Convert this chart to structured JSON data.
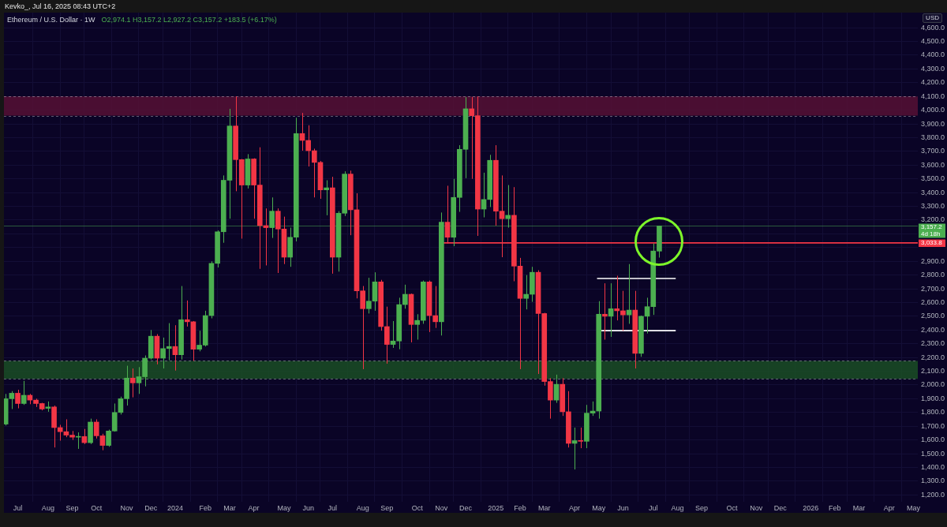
{
  "chart_data": {
    "type": "candlestick",
    "title": "Ethereum / U.S. Dollar · 1W",
    "subtitle": "O2,974.1 H3,157.2 L2,927.2 C3,157.2 +183.5 (+6.17%)",
    "ylabel": "USD",
    "annotations": [
      "Kevko_, Jul 16, 2025 08:43 UTC+2",
      {
        "text": "3,033.8",
        "x": "2026-05-09",
        "y": 3033.8
      }
    ],
    "series": [
      {
        "type": "line",
        "x": [
          "2024-11-06",
          "2026-05-09"
        ],
        "values": [
          3033.8,
          3033.8
        ],
        "color": "#f23645"
      },
      {
        "type": "line",
        "x": [
          "2025-05-03",
          "2025-08-02"
        ],
        "values": [
          2775,
          2775
        ],
        "color": "#ffffff"
      },
      {
        "type": "line",
        "x": [
          "2025-05-06",
          "2025-08-02"
        ],
        "values": [
          2395,
          2395
        ],
        "color": "#ffffff"
      },
      {
        "x": [
          "2023-06-19",
          "2023-06-26",
          "2023-07-03",
          "2023-07-10",
          "2023-07-17",
          "2023-07-24",
          "2023-07-31",
          "2023-08-07",
          "2023-08-14",
          "2023-08-21",
          "2023-08-28",
          "2023-09-04",
          "2023-09-11",
          "2023-09-18",
          "2023-09-25",
          "2023-10-02",
          "2023-10-09",
          "2023-10-16",
          "2023-10-23",
          "2023-10-30",
          "2023-11-06",
          "2023-11-13",
          "2023-11-20",
          "2023-11-27",
          "2023-12-04",
          "2023-12-11",
          "2023-12-18",
          "2023-12-25",
          "2024-01-01",
          "2024-01-08",
          "2024-01-15",
          "2024-01-22",
          "2024-01-29",
          "2024-02-05",
          "2024-02-12",
          "2024-02-19",
          "2024-02-26",
          "2024-03-04",
          "2024-03-11",
          "2024-03-18",
          "2024-03-25",
          "2024-04-01",
          "2024-04-08",
          "2024-04-15",
          "2024-04-22",
          "2024-04-29",
          "2024-05-06",
          "2024-05-13",
          "2024-05-20",
          "2024-05-27",
          "2024-06-03",
          "2024-06-10",
          "2024-06-17",
          "2024-06-24",
          "2024-07-01",
          "2024-07-08",
          "2024-07-15",
          "2024-07-22",
          "2024-07-29",
          "2024-08-05",
          "2024-08-12",
          "2024-08-19",
          "2024-08-26",
          "2024-09-02",
          "2024-09-09",
          "2024-09-16",
          "2024-09-23",
          "2024-09-30",
          "2024-10-07",
          "2024-10-14",
          "2024-10-21",
          "2024-10-28",
          "2024-11-04",
          "2024-11-11",
          "2024-11-18",
          "2024-11-25",
          "2024-12-02",
          "2024-12-09",
          "2024-12-16",
          "2024-12-23",
          "2024-12-30",
          "2025-01-06",
          "2025-01-13",
          "2025-01-20",
          "2025-01-27",
          "2025-02-03",
          "2025-02-10",
          "2025-02-17",
          "2025-02-24",
          "2025-03-03",
          "2025-03-10",
          "2025-03-17",
          "2025-03-24",
          "2025-03-31",
          "2025-04-07",
          "2025-04-14",
          "2025-04-21",
          "2025-04-28",
          "2025-05-05",
          "2025-05-12",
          "2025-05-19",
          "2025-05-26",
          "2025-06-02",
          "2025-06-09",
          "2025-06-16",
          "2025-06-23",
          "2025-06-30",
          "2025-07-07",
          "2025-07-14"
        ],
        "ohlc": [
          [
            1715,
            1935,
            1705,
            1900
          ],
          [
            1900,
            1955,
            1825,
            1940
          ],
          [
            1940,
            1965,
            1830,
            1865
          ],
          [
            1865,
            2030,
            1855,
            1925
          ],
          [
            1925,
            1935,
            1860,
            1890
          ],
          [
            1890,
            1900,
            1840,
            1865
          ],
          [
            1865,
            1870,
            1815,
            1825
          ],
          [
            1830,
            1880,
            1805,
            1840
          ],
          [
            1840,
            1850,
            1545,
            1690
          ],
          [
            1690,
            1710,
            1595,
            1660
          ],
          [
            1660,
            1750,
            1620,
            1635
          ],
          [
            1635,
            1665,
            1600,
            1620
          ],
          [
            1620,
            1655,
            1535,
            1625
          ],
          [
            1625,
            1680,
            1570,
            1580
          ],
          [
            1580,
            1755,
            1570,
            1730
          ],
          [
            1730,
            1750,
            1610,
            1630
          ],
          [
            1630,
            1645,
            1525,
            1560
          ],
          [
            1560,
            1675,
            1550,
            1665
          ],
          [
            1665,
            1865,
            1660,
            1800
          ],
          [
            1800,
            1915,
            1785,
            1900
          ],
          [
            1900,
            2140,
            1850,
            2050
          ],
          [
            2050,
            2120,
            1910,
            2015
          ],
          [
            2015,
            2130,
            1935,
            2060
          ],
          [
            2060,
            2215,
            1990,
            2195
          ],
          [
            2195,
            2400,
            2185,
            2355
          ],
          [
            2355,
            2370,
            2150,
            2195
          ],
          [
            2195,
            2345,
            2120,
            2265
          ],
          [
            2265,
            2450,
            2180,
            2280
          ],
          [
            2280,
            2435,
            2105,
            2220
          ],
          [
            2220,
            2720,
            2185,
            2475
          ],
          [
            2475,
            2615,
            2425,
            2460
          ],
          [
            2460,
            2465,
            2175,
            2260
          ],
          [
            2260,
            2395,
            2245,
            2290
          ],
          [
            2290,
            2540,
            2280,
            2505
          ],
          [
            2505,
            2900,
            2485,
            2885
          ],
          [
            2885,
            3125,
            2855,
            3115
          ],
          [
            3115,
            3525,
            3035,
            3490
          ],
          [
            3490,
            4010,
            3210,
            3885
          ],
          [
            3885,
            4100,
            3410,
            3640
          ],
          [
            3640,
            3645,
            3065,
            3455
          ],
          [
            3455,
            3680,
            3430,
            3645
          ],
          [
            3645,
            3650,
            3210,
            3455
          ],
          [
            3455,
            3730,
            2845,
            3160
          ],
          [
            3160,
            3285,
            2870,
            3145
          ],
          [
            3145,
            3365,
            3070,
            3265
          ],
          [
            3265,
            3285,
            2815,
            3135
          ],
          [
            3135,
            3225,
            2880,
            2930
          ],
          [
            2930,
            3145,
            2860,
            3075
          ],
          [
            3075,
            3945,
            3045,
            3830
          ],
          [
            3830,
            3980,
            3705,
            3780
          ],
          [
            3780,
            3890,
            3590,
            3705
          ],
          [
            3705,
            3720,
            3365,
            3620
          ],
          [
            3620,
            3630,
            3355,
            3420
          ],
          [
            3420,
            3490,
            3235,
            3435
          ],
          [
            3435,
            3515,
            2810,
            2930
          ],
          [
            2930,
            3265,
            2825,
            3250
          ],
          [
            3250,
            3555,
            3230,
            3535
          ],
          [
            3535,
            3560,
            3090,
            3275
          ],
          [
            3275,
            3395,
            2630,
            2685
          ],
          [
            2685,
            2720,
            2115,
            2555
          ],
          [
            2555,
            2780,
            2520,
            2610
          ],
          [
            2610,
            2820,
            2540,
            2750
          ],
          [
            2750,
            2765,
            2395,
            2425
          ],
          [
            2425,
            2570,
            2155,
            2295
          ],
          [
            2295,
            2465,
            2270,
            2320
          ],
          [
            2320,
            2635,
            2260,
            2585
          ],
          [
            2585,
            2730,
            2555,
            2660
          ],
          [
            2660,
            2665,
            2310,
            2440
          ],
          [
            2440,
            2515,
            2330,
            2470
          ],
          [
            2470,
            2760,
            2445,
            2750
          ],
          [
            2750,
            2760,
            2385,
            2505
          ],
          [
            2505,
            2720,
            2415,
            2460
          ],
          [
            2460,
            3255,
            2360,
            3185
          ],
          [
            3185,
            3450,
            3030,
            3075
          ],
          [
            3075,
            3500,
            3010,
            3365
          ],
          [
            3365,
            3745,
            3260,
            3715
          ],
          [
            3715,
            4095,
            3505,
            4010
          ],
          [
            4010,
            4095,
            3500,
            3960
          ],
          [
            3960,
            4100,
            3085,
            3280
          ],
          [
            3280,
            3545,
            3220,
            3350
          ],
          [
            3350,
            3675,
            3295,
            3635
          ],
          [
            3635,
            3745,
            3160,
            3265
          ],
          [
            3265,
            3525,
            2930,
            3210
          ],
          [
            3210,
            3455,
            3145,
            3235
          ],
          [
            3235,
            3440,
            2755,
            2865
          ],
          [
            2865,
            2925,
            2115,
            2630
          ],
          [
            2630,
            2800,
            2550,
            2660
          ],
          [
            2660,
            2860,
            2605,
            2820
          ],
          [
            2820,
            2835,
            2080,
            2520
          ],
          [
            2520,
            2525,
            1995,
            2025
          ],
          [
            2025,
            2050,
            1755,
            1890
          ],
          [
            1890,
            2075,
            1870,
            2005
          ],
          [
            2005,
            2050,
            1775,
            1805
          ],
          [
            1805,
            1955,
            1545,
            1575
          ],
          [
            1575,
            1690,
            1385,
            1595
          ],
          [
            1595,
            1690,
            1540,
            1590
          ],
          [
            1590,
            1855,
            1540,
            1795
          ],
          [
            1795,
            1880,
            1775,
            1810
          ],
          [
            1810,
            2610,
            1755,
            2515
          ],
          [
            2515,
            2740,
            2330,
            2500
          ],
          [
            2500,
            2740,
            2350,
            2555
          ],
          [
            2555,
            2795,
            2470,
            2540
          ],
          [
            2540,
            2685,
            2395,
            2510
          ],
          [
            2510,
            2880,
            2445,
            2545
          ],
          [
            2545,
            2685,
            2120,
            2230
          ],
          [
            2230,
            2505,
            2205,
            2500
          ],
          [
            2500,
            2635,
            2375,
            2570
          ],
          [
            2570,
            3030,
            2510,
            2975
          ],
          [
            2974.1,
            3157.2,
            2927.2,
            3157.2
          ]
        ],
        "colors": [
          "#4caf50",
          "#4caf50",
          "#f23645",
          "#4caf50",
          "#f23645",
          "#f23645",
          "#f23645",
          "#4caf50",
          "#f23645",
          "#f23645",
          "#f23645",
          "#f23645",
          "#4caf50",
          "#f23645",
          "#4caf50",
          "#f23645",
          "#f23645",
          "#4caf50",
          "#4caf50",
          "#4caf50",
          "#4caf50",
          "#f23645",
          "#4caf50",
          "#4caf50",
          "#4caf50",
          "#f23645",
          "#4caf50",
          "#4caf50",
          "#f23645",
          "#4caf50",
          "#f23645",
          "#f23645",
          "#4caf50",
          "#4caf50",
          "#4caf50",
          "#4caf50",
          "#4caf50",
          "#4caf50",
          "#f23645",
          "#f23645",
          "#4caf50",
          "#f23645",
          "#f23645",
          "#f23645",
          "#4caf50",
          "#f23645",
          "#f23645",
          "#4caf50",
          "#4caf50",
          "#f23645",
          "#f23645",
          "#f23645",
          "#f23645",
          "#4caf50",
          "#f23645",
          "#4caf50",
          "#4caf50",
          "#f23645",
          "#f23645",
          "#f23645",
          "#4caf50",
          "#4caf50",
          "#f23645",
          "#f23645",
          "#4caf50",
          "#4caf50",
          "#4caf50",
          "#f23645",
          "#4caf50",
          "#4caf50",
          "#f23645",
          "#f23645",
          "#4caf50",
          "#f23645",
          "#4caf50",
          "#4caf50",
          "#4caf50",
          "#f23645",
          "#f23645",
          "#4caf50",
          "#4caf50",
          "#f23645",
          "#f23645",
          "#4caf50",
          "#f23645",
          "#f23645",
          "#4caf50",
          "#4caf50",
          "#f23645",
          "#f23645",
          "#f23645",
          "#4caf50",
          "#f23645",
          "#f23645",
          "#4caf50",
          "#f23645",
          "#4caf50",
          "#4caf50",
          "#4caf50",
          "#f23645",
          "#4caf50",
          "#f23645",
          "#f23645",
          "#4caf50",
          "#f23645",
          "#4caf50",
          "#4caf50",
          "#4caf50",
          "#4caf50"
        ]
      }
    ],
    "ref_lines": [
      {
        "axis": "y",
        "value": 3157.2,
        "label": "3,157.2 4d 18h",
        "color": "#4caf50"
      }
    ],
    "bands": [
      {
        "axis": "y",
        "from": 3960,
        "to": 4100,
        "color": "#5a1236"
      },
      {
        "axis": "y",
        "from": 2045,
        "to": 2175,
        "color": "#1a5224"
      }
    ],
    "xlim": [
      "2023-06-17",
      "2026-05-09"
    ],
    "xticks": [
      {
        "value": "2023-07-03",
        "label": "Jul"
      },
      {
        "value": "2023-08-07",
        "label": "Aug"
      },
      {
        "value": "2023-09-04",
        "label": "Sep"
      },
      {
        "value": "2023-10-02",
        "label": "Oct"
      },
      {
        "value": "2023-11-06",
        "label": "Nov"
      },
      {
        "value": "2023-12-04",
        "label": "Dec"
      },
      {
        "value": "2024-01-01",
        "label": "2024"
      },
      {
        "value": "2024-02-05",
        "label": "Feb"
      },
      {
        "value": "2024-03-04",
        "label": "Mar"
      },
      {
        "value": "2024-04-01",
        "label": "Apr"
      },
      {
        "value": "2024-05-06",
        "label": "May"
      },
      {
        "value": "2024-06-03",
        "label": "Jun"
      },
      {
        "value": "2024-07-01",
        "label": "Jul"
      },
      {
        "value": "2024-08-05",
        "label": "Aug"
      },
      {
        "value": "2024-09-02",
        "label": "Sep"
      },
      {
        "value": "2024-10-07",
        "label": "Oct"
      },
      {
        "value": "2024-11-04",
        "label": "Nov"
      },
      {
        "value": "2024-12-02",
        "label": "Dec"
      },
      {
        "value": "2025-01-06",
        "label": "2025"
      },
      {
        "value": "2025-02-03",
        "label": "Feb"
      },
      {
        "value": "2025-03-03",
        "label": "Mar"
      },
      {
        "value": "2025-04-07",
        "label": "Apr"
      },
      {
        "value": "2025-05-05",
        "label": "May"
      },
      {
        "value": "2025-06-02",
        "label": "Jun"
      },
      {
        "value": "2025-07-07",
        "label": "Jul"
      },
      {
        "value": "2025-08-04",
        "label": "Aug"
      },
      {
        "value": "2025-09-01",
        "label": "Sep"
      },
      {
        "value": "2025-10-06",
        "label": "Oct"
      },
      {
        "value": "2025-11-03",
        "label": "Nov"
      },
      {
        "value": "2025-12-01",
        "label": "Dec"
      },
      {
        "value": "2026-01-05",
        "label": "2026"
      },
      {
        "value": "2026-02-02",
        "label": "Feb"
      },
      {
        "value": "2026-03-02",
        "label": "Mar"
      },
      {
        "value": "2026-04-06",
        "label": "Apr"
      },
      {
        "value": "2026-05-04",
        "label": "May"
      }
    ],
    "ylim": [
      1150,
      4710
    ],
    "yticks": [
      {
        "value": 1200,
        "label": "1,200.0"
      },
      {
        "value": 1300,
        "label": "1,300.0"
      },
      {
        "value": 1400,
        "label": "1,400.0"
      },
      {
        "value": 1500,
        "label": "1,500.0"
      },
      {
        "value": 1600,
        "label": "1,600.0"
      },
      {
        "value": 1700,
        "label": "1,700.0"
      },
      {
        "value": 1800,
        "label": "1,800.0"
      },
      {
        "value": 1900,
        "label": "1,900.0"
      },
      {
        "value": 2000,
        "label": "2,000.0"
      },
      {
        "value": 2100,
        "label": "2,100.0"
      },
      {
        "value": 2200,
        "label": "2,200.0"
      },
      {
        "value": 2300,
        "label": "2,300.0"
      },
      {
        "value": 2400,
        "label": "2,400.0"
      },
      {
        "value": 2500,
        "label": "2,500.0"
      },
      {
        "value": 2600,
        "label": "2,600.0"
      },
      {
        "value": 2700,
        "label": "2,700.0"
      },
      {
        "value": 2800,
        "label": "2,800.0"
      },
      {
        "value": 2900,
        "label": "2,900.0"
      },
      {
        "value": 3000,
        "label": null
      },
      {
        "value": 3100,
        "label": null
      },
      {
        "value": 3200,
        "label": "3,200.0"
      },
      {
        "value": 3300,
        "label": "3,300.0"
      },
      {
        "value": 3400,
        "label": "3,400.0"
      },
      {
        "value": 3500,
        "label": "3,500.0"
      },
      {
        "value": 3600,
        "label": "3,600.0"
      },
      {
        "value": 3700,
        "label": "3,700.0"
      },
      {
        "value": 3800,
        "label": "3,800.0"
      },
      {
        "value": 3900,
        "label": "3,900.0"
      },
      {
        "value": 4000,
        "label": "4,000.0"
      },
      {
        "value": 4100,
        "label": "4,100.0"
      },
      {
        "value": 4200,
        "label": "4,200.0"
      },
      {
        "value": 4300,
        "label": "4,300.0"
      },
      {
        "value": 4400,
        "label": "4,400.0"
      },
      {
        "value": 4500,
        "label": "4,500.0"
      },
      {
        "value": 4600,
        "label": "4,600.0"
      }
    ],
    "grid": true
  }
}
